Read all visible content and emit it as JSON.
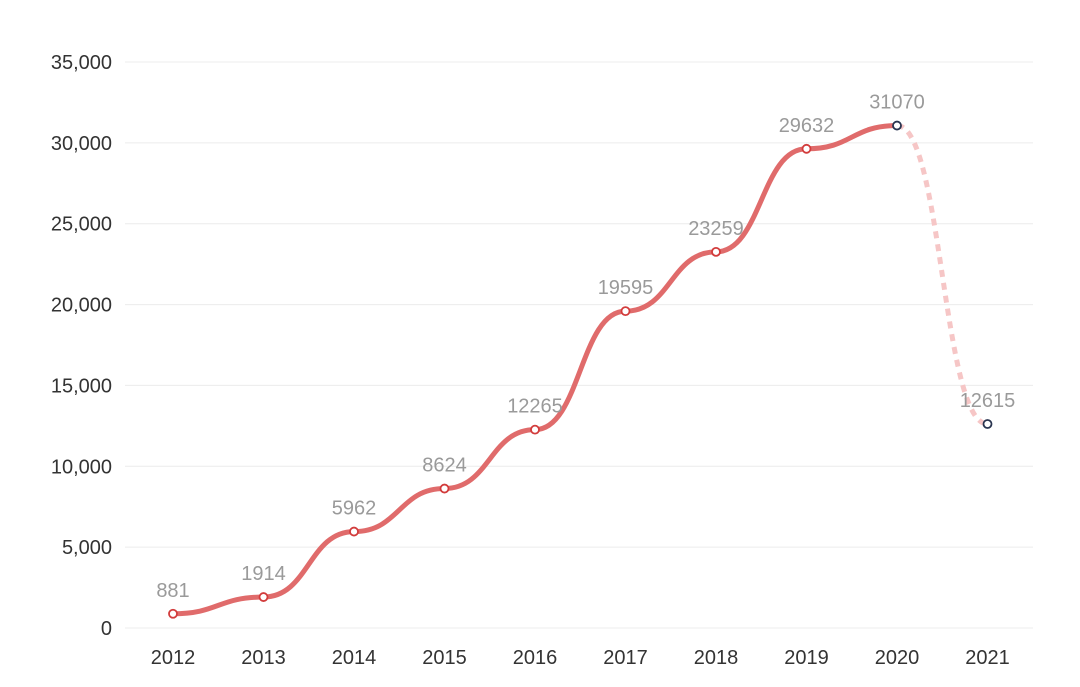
{
  "chart_data": {
    "type": "line",
    "title": "",
    "xlabel": "",
    "ylabel": "",
    "categories": [
      "2012",
      "2013",
      "2014",
      "2015",
      "2016",
      "2017",
      "2018",
      "2019",
      "2020",
      "2021"
    ],
    "series": [
      {
        "values": [
          881,
          1914,
          5962,
          8624,
          12265,
          19595,
          23259,
          29632,
          31070,
          12615
        ],
        "data_labels": [
          "881",
          "1914",
          "5962",
          "8624",
          "12265",
          "19595",
          "23259",
          "29632",
          "31070",
          "12615"
        ]
      }
    ],
    "ylim": [
      0,
      35000
    ],
    "y_ticks": [
      0,
      5000,
      10000,
      15000,
      20000,
      25000,
      30000,
      35000
    ],
    "y_tick_labels": [
      "0",
      "5,000",
      "10,000",
      "15,000",
      "20,000",
      "25,000",
      "30,000",
      "35,000"
    ],
    "grid": true,
    "legend": "none",
    "smooth": true,
    "dashed_segment_from_category": "2020",
    "colors": {
      "line": "#e06b6b",
      "dashed_line": "#f6c6c6",
      "marker_fill": "#ffffff",
      "marker_stroke": "#d23c3c",
      "projected_marker_stroke": "#2a3550",
      "grid": "#ececec",
      "axis_text": "#333333",
      "data_label_text": "#9a9a9a"
    }
  }
}
